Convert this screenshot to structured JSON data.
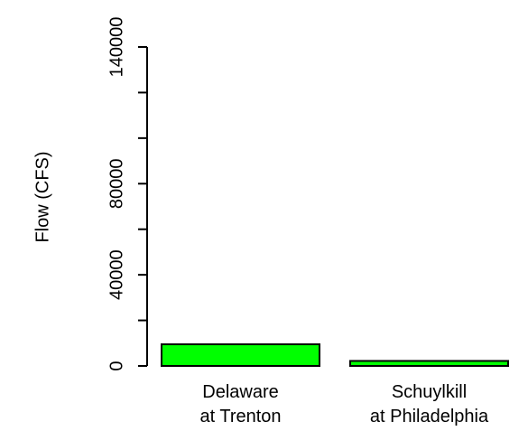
{
  "chart_data": {
    "type": "bar",
    "title": "",
    "xlabel": "",
    "ylabel": "Flow (CFS)",
    "ylim": [
      0,
      140000
    ],
    "yticks": [
      0,
      40000,
      80000,
      140000
    ],
    "ytick_labels": [
      "0",
      "40000",
      "80000",
      "140000"
    ],
    "grid": false,
    "categories": [
      [
        "Delaware",
        "at Trenton"
      ],
      [
        "Schuylkill",
        "at Philadelphia"
      ]
    ],
    "series": [
      {
        "values": [
          9500,
          2200
        ]
      }
    ],
    "colors": {
      "bar_fill": "#00ff00",
      "bar_stroke": "#000000",
      "axis": "#000000"
    }
  }
}
